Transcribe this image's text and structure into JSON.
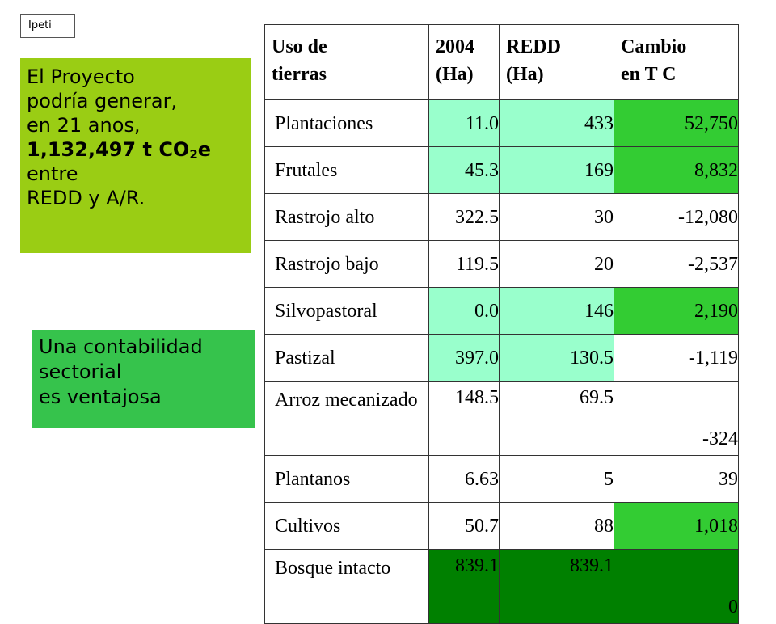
{
  "tag": "Ipeti",
  "left_box": {
    "line1": "El Proyecto",
    "line2": "podría generar,",
    "line3": "en 21 anos,",
    "line4_main": "1,132,497 t CO",
    "line4_sub": "2",
    "line4_end": "e",
    "line5": "entre",
    "line6": "REDD y A/R."
  },
  "note_box": {
    "line1": "Una contabilidad",
    "line2": "sectorial",
    "line3": "es ventajosa"
  },
  "table": {
    "headers": [
      {
        "line1": "Uso de",
        "line2": "tierras"
      },
      {
        "line1": "2004",
        "line2": "(Ha)"
      },
      {
        "line1": "REDD",
        "line2": "(Ha)"
      },
      {
        "line1": "Cambio",
        "line2": "en T C"
      }
    ],
    "rows": [
      {
        "name": "Plantaciones",
        "y2004": "11.0",
        "redd": "433",
        "cambio": "52,750"
      },
      {
        "name": "Frutales",
        "y2004": "45.3",
        "redd": "169",
        "cambio": "8,832"
      },
      {
        "name": "Rastrojo alto",
        "y2004": "322.5",
        "redd": "30",
        "cambio": "-12,080"
      },
      {
        "name": "Rastrojo bajo",
        "y2004": "119.5",
        "redd": "20",
        "cambio": "-2,537"
      },
      {
        "name": "Silvopastoral",
        "y2004": "0.0",
        "redd": "146",
        "cambio": "2,190"
      },
      {
        "name": "Pastizal",
        "y2004": "397.0",
        "redd": "130.5",
        "cambio": "-1,119"
      },
      {
        "name": "Arroz mecanizado",
        "y2004": "148.5",
        "redd": "69.5",
        "cambio": "-324"
      },
      {
        "name": "Plantanos",
        "y2004": "6.63",
        "redd": "5",
        "cambio": "39"
      },
      {
        "name": "Cultivos",
        "y2004": "50.7",
        "redd": "88",
        "cambio": "1,018"
      },
      {
        "name": "Bosque intacto",
        "y2004": "839.1",
        "redd": "839.1",
        "cambio": "0"
      }
    ]
  },
  "colors": {
    "left_box": "#9acd14",
    "note_box": "#36c34c",
    "cell_light": "#99ffcc",
    "cell_mid": "#33cc33",
    "cell_dark": "#008000"
  }
}
